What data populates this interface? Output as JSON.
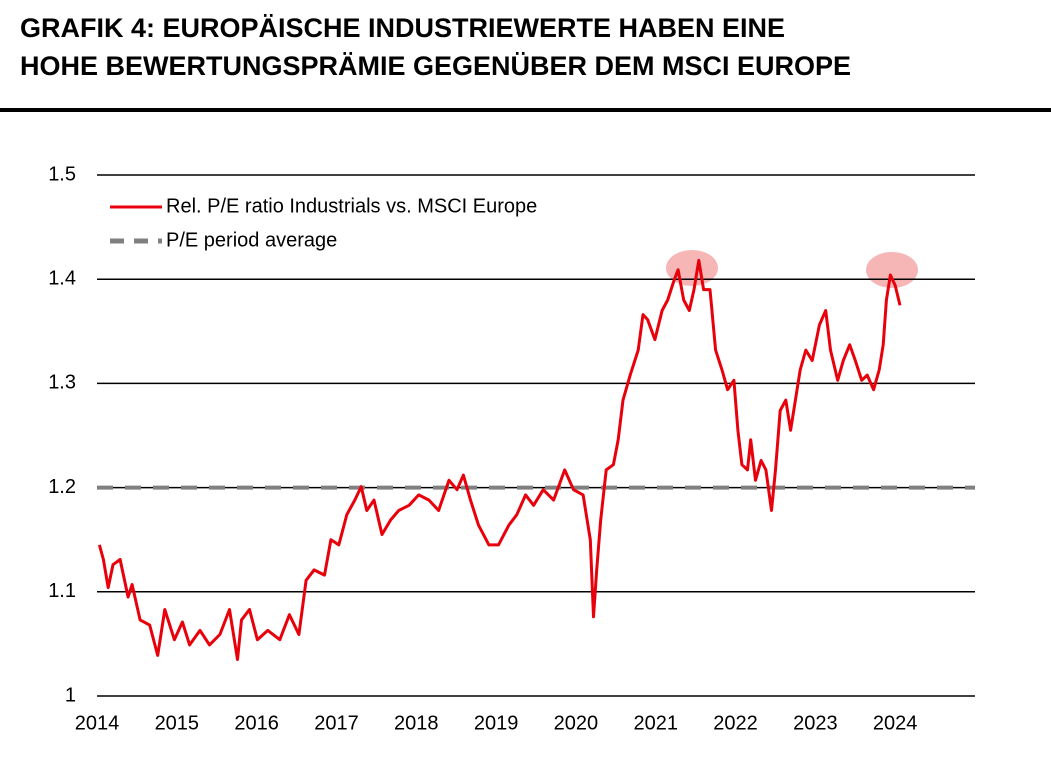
{
  "chart_data": {
    "type": "line",
    "title": [
      "GRAFIK 4: EUROPÄISCHE INDUSTRIEWERTE HABEN EINE",
      "HOHE BEWERTUNGSPRÄMIE GEGENÜBER DEM MSCI EUROPE"
    ],
    "xlim": [
      2014,
      2025
    ],
    "xticks": [
      2014,
      2015,
      2016,
      2017,
      2018,
      2019,
      2020,
      2021,
      2022,
      2023,
      2024
    ],
    "ylim": [
      1,
      1.5
    ],
    "yticks": [
      1,
      1.1,
      1.2,
      1.3,
      1.4,
      1.5
    ],
    "grid": true,
    "legend": "upper left",
    "series": [
      {
        "name": "Rel. P/E ratio Industrials vs. MSCI Europe",
        "color": "#e8000b",
        "dashed": false,
        "x": [
          2014.03,
          2014.08,
          2014.14,
          2014.2,
          2014.29,
          2014.39,
          2014.44,
          2014.54,
          2014.66,
          2014.76,
          2014.85,
          2014.97,
          2015.07,
          2015.16,
          2015.29,
          2015.41,
          2015.54,
          2015.66,
          2015.76,
          2015.81,
          2015.91,
          2016.01,
          2016.14,
          2016.29,
          2016.41,
          2016.53,
          2016.62,
          2016.72,
          2016.85,
          2016.93,
          2017.03,
          2017.13,
          2017.23,
          2017.31,
          2017.38,
          2017.47,
          2017.57,
          2017.68,
          2017.78,
          2017.91,
          2018.03,
          2018.16,
          2018.28,
          2018.41,
          2018.51,
          2018.59,
          2018.68,
          2018.78,
          2018.91,
          2019.03,
          2019.16,
          2019.26,
          2019.37,
          2019.47,
          2019.59,
          2019.72,
          2019.86,
          2019.97,
          2020.09,
          2020.18,
          2020.22,
          2020.26,
          2020.31,
          2020.38,
          2020.47,
          2020.53,
          2020.59,
          2020.68,
          2020.78,
          2020.84,
          2020.9,
          2020.99,
          2021.08,
          2021.15,
          2021.23,
          2021.28,
          2021.35,
          2021.42,
          2021.48,
          2021.54,
          2021.6,
          2021.68,
          2021.75,
          2021.83,
          2021.9,
          2021.98,
          2022.03,
          2022.08,
          2022.15,
          2022.19,
          2022.25,
          2022.32,
          2022.38,
          2022.45,
          2022.5,
          2022.56,
          2022.63,
          2022.69,
          2022.75,
          2022.81,
          2022.88,
          2022.96,
          2023.05,
          2023.13,
          2023.19,
          2023.28,
          2023.35,
          2023.43,
          2023.5,
          2023.58,
          2023.65,
          2023.73,
          2023.8,
          2023.85,
          2023.89,
          2023.94,
          2024.0,
          2024.06
        ],
        "values": [
          1.145,
          1.131,
          1.104,
          1.126,
          1.131,
          1.095,
          1.107,
          1.073,
          1.068,
          1.039,
          1.083,
          1.054,
          1.071,
          1.049,
          1.063,
          1.049,
          1.059,
          1.083,
          1.035,
          1.073,
          1.083,
          1.054,
          1.063,
          1.054,
          1.078,
          1.059,
          1.111,
          1.121,
          1.116,
          1.15,
          1.145,
          1.174,
          1.188,
          1.201,
          1.178,
          1.188,
          1.155,
          1.169,
          1.178,
          1.183,
          1.193,
          1.188,
          1.178,
          1.207,
          1.198,
          1.212,
          1.188,
          1.164,
          1.145,
          1.145,
          1.164,
          1.174,
          1.193,
          1.183,
          1.198,
          1.188,
          1.217,
          1.198,
          1.193,
          1.15,
          1.076,
          1.121,
          1.169,
          1.217,
          1.222,
          1.246,
          1.284,
          1.308,
          1.332,
          1.366,
          1.361,
          1.342,
          1.37,
          1.38,
          1.399,
          1.409,
          1.38,
          1.37,
          1.39,
          1.418,
          1.39,
          1.39,
          1.332,
          1.313,
          1.294,
          1.303,
          1.255,
          1.222,
          1.217,
          1.246,
          1.207,
          1.226,
          1.217,
          1.178,
          1.217,
          1.274,
          1.284,
          1.255,
          1.284,
          1.313,
          1.332,
          1.322,
          1.356,
          1.37,
          1.332,
          1.303,
          1.322,
          1.337,
          1.322,
          1.303,
          1.308,
          1.294,
          1.313,
          1.337,
          1.38,
          1.404,
          1.394,
          1.375
        ]
      },
      {
        "name": "P/E period average",
        "color": "#808080",
        "dashed": true,
        "x": [
          2014,
          2025
        ],
        "values": [
          1.2,
          1.2
        ]
      }
    ]
  }
}
